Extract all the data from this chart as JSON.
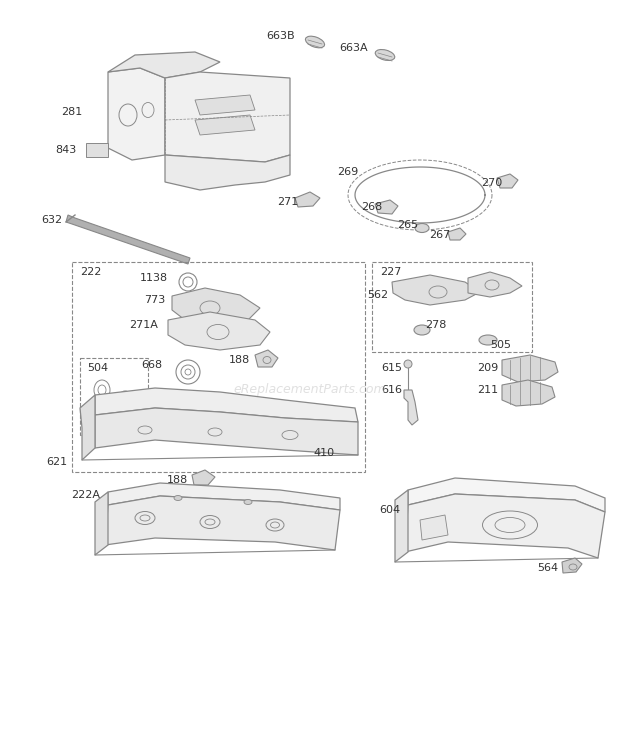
{
  "bg_color": "#ffffff",
  "line_color": "#888888",
  "text_color": "#333333",
  "watermark": "eReplacementParts.com",
  "figsize": [
    6.2,
    7.44
  ],
  "dpi": 100,
  "xlim": [
    0,
    620
  ],
  "ylim": [
    0,
    744
  ]
}
